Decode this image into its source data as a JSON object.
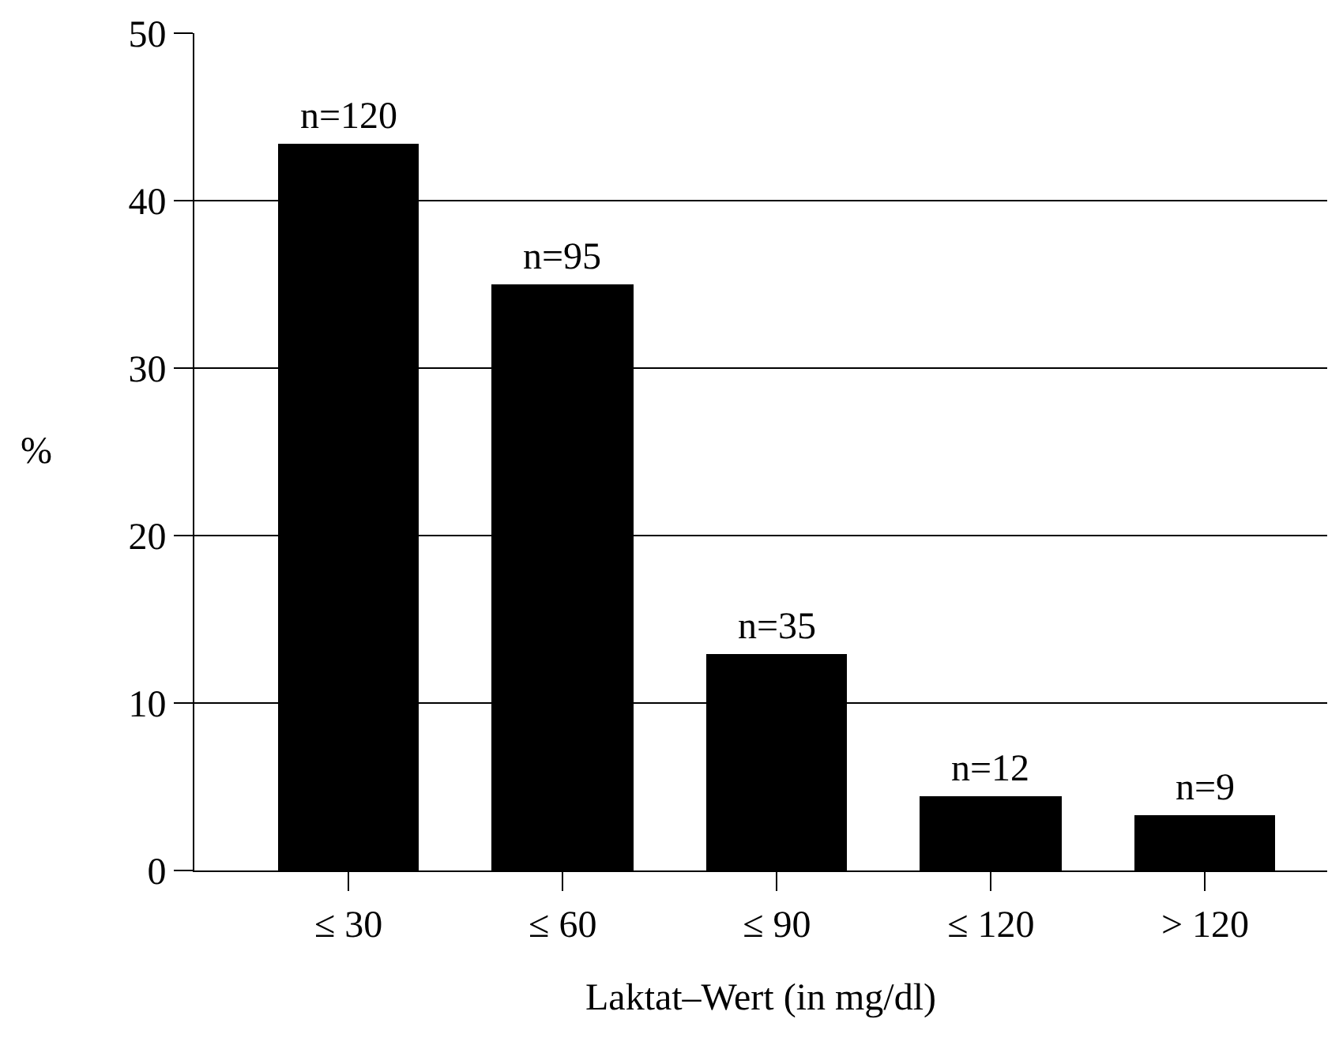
{
  "chart_data": {
    "type": "bar",
    "xlabel": "Laktat–Wert (in mg/dl)",
    "ylabel": "%",
    "categories": [
      "≤ 30",
      "≤ 60",
      "≤ 90",
      "≤ 120",
      "> 120"
    ],
    "values": [
      43.4,
      35.0,
      12.9,
      4.4,
      3.3
    ],
    "annotations": [
      {
        "text": "n=120",
        "x": "≤ 30",
        "y": 43.4
      },
      {
        "text": "n=95",
        "x": "≤ 60",
        "y": 35.0
      },
      {
        "text": "n=35",
        "x": "≤ 90",
        "y": 12.9
      },
      {
        "text": "n=12",
        "x": "≤ 120",
        "y": 4.4
      },
      {
        "text": "n=9",
        "x": "> 120",
        "y": 3.3
      }
    ],
    "color": "#000000",
    "ylim": [
      0,
      50
    ],
    "yticks": [
      0,
      10,
      20,
      30,
      40,
      50
    ],
    "grid": "y",
    "legend": false
  }
}
